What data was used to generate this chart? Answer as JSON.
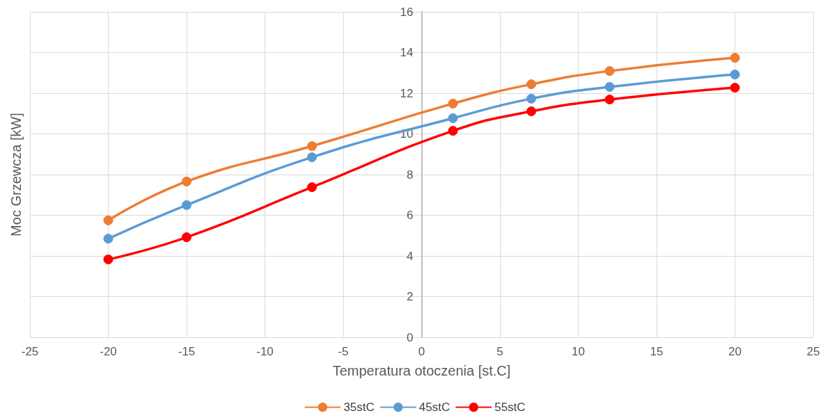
{
  "chart_data": {
    "type": "line",
    "xlabel": "Temperatura otoczenia [st.C]",
    "ylabel": "Moc Grzewcza [kW]",
    "x": [
      -20,
      -15,
      -7,
      2,
      7,
      12,
      20
    ],
    "series": [
      {
        "name": "35stC",
        "color": "#ed7d31",
        "values": [
          5.75,
          7.66,
          9.4,
          11.49,
          12.44,
          13.09,
          13.74
        ]
      },
      {
        "name": "45stC",
        "color": "#5b9bd5",
        "values": [
          4.85,
          6.5,
          8.85,
          10.77,
          11.73,
          12.31,
          12.92
        ]
      },
      {
        "name": "55stC",
        "color": "#ff0000",
        "values": [
          3.83,
          4.92,
          7.38,
          10.15,
          11.11,
          11.69,
          12.27
        ]
      }
    ],
    "xlim": [
      -25,
      25
    ],
    "xticks": [
      -25,
      -20,
      -15,
      -10,
      -5,
      0,
      5,
      10,
      15,
      20,
      25
    ],
    "ylim": [
      0,
      16
    ],
    "yticks": [
      0,
      2,
      4,
      6,
      8,
      10,
      12,
      14,
      16
    ],
    "grid": true,
    "legend": "bottom",
    "marker": "circle",
    "line_style": "solid"
  }
}
